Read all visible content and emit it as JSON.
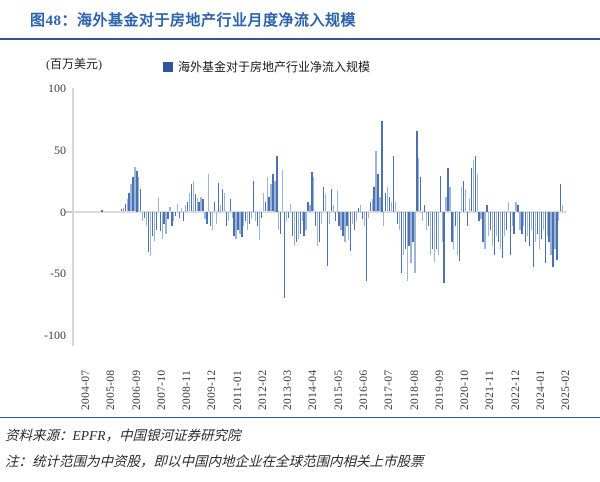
{
  "header": {
    "title": "图48：海外基金对于房地产行业月度净流入规模"
  },
  "chart": {
    "unit_label": "(百万美元)",
    "legend_label": "海外基金对于房地产行业净流入规模"
  },
  "footer": {
    "source": "资料来源：EPFR，中国银河证券研究院",
    "note": "注：统计范围为中资股，即以中国内地企业在全球范围内相关上市股票"
  },
  "colors": {
    "title_blue": "#2b63ad",
    "rule_blue": "#2f5597",
    "bar_dark": "#4a72b2",
    "bar_light": "#9db4d9",
    "axis_gray": "#d6d6d6"
  },
  "chart_data": {
    "type": "bar",
    "title": "海外基金对于房地产行业月度净流入规模",
    "ylabel": "(百万美元)",
    "ylim": [
      -100,
      100
    ],
    "grid": "zero-line only",
    "legend_position": "top",
    "y_tick_labels": [
      "100",
      "50",
      "0",
      "-50",
      "-100"
    ],
    "y_tick_values": [
      100,
      50,
      0,
      -50,
      -100
    ],
    "x_tick_labels": [
      "2004-07",
      "2005-08",
      "2006-09",
      "2007-10",
      "2008-11",
      "2009-12",
      "2011-01",
      "2012-02",
      "2013-03",
      "2014-04",
      "2015-05",
      "2016-06",
      "2017-07",
      "2018-08",
      "2019-09",
      "2020-10",
      "2021-11",
      "2022-12",
      "2024-01",
      "2025-02"
    ],
    "x_tick_interval_months": 13,
    "x_monthly_from": "2004-07",
    "x_monthly_to": "2025-06",
    "series": [
      {
        "name": "海外基金对于房地产行业净流入规模",
        "unit": "百万美元",
        "values": [
          0,
          0,
          0,
          0,
          0,
          0,
          0,
          0,
          0,
          0,
          0,
          0,
          0,
          0,
          1,
          0,
          0,
          0,
          0,
          0,
          0,
          0,
          0,
          0,
          2,
          3,
          6,
          10,
          15,
          22,
          28,
          36,
          33,
          28,
          18,
          -8,
          -5,
          -12,
          -33,
          -36,
          -20,
          -24,
          -15,
          12,
          -16,
          -22,
          -10,
          -18,
          -6,
          4,
          -12,
          -8,
          -4,
          6,
          -5,
          3,
          -8,
          5,
          8,
          15,
          22,
          25,
          14,
          11,
          8,
          12,
          10,
          -6,
          -10,
          30,
          -12,
          -15,
          8,
          -10,
          23,
          5,
          18,
          15,
          -12,
          -8,
          10,
          -5,
          -20,
          -22,
          -15,
          -18,
          -21,
          -12,
          -8,
          -15,
          -10,
          -6,
          25,
          -8,
          -12,
          -23,
          -5,
          15,
          8,
          28,
          12,
          22,
          30,
          25,
          45,
          -15,
          -18,
          34,
          -70,
          -8,
          -5,
          6,
          -20,
          -28,
          -25,
          -22,
          -18,
          -8,
          -20,
          -15,
          8,
          5,
          32,
          28,
          -12,
          -28,
          -25,
          -10,
          20,
          14,
          -44,
          -10,
          18,
          5,
          -8,
          17,
          -12,
          -15,
          -20,
          -25,
          -12,
          -23,
          -32,
          -10,
          -15,
          -8,
          3,
          5,
          -6,
          -12,
          -56,
          -5,
          8,
          10,
          20,
          49,
          30,
          12,
          73,
          -12,
          15,
          20,
          12,
          8,
          45,
          8,
          -10,
          -15,
          -50,
          -35,
          -30,
          -56,
          -28,
          -42,
          -25,
          -50,
          65,
          43,
          28,
          -8,
          5,
          -15,
          -12,
          -35,
          -30,
          -41,
          -30,
          -35,
          29,
          -25,
          -58,
          12,
          35,
          20,
          -25,
          -30,
          -12,
          -35,
          -40,
          20,
          25,
          18,
          -12,
          10,
          35,
          42,
          45,
          30,
          -8,
          -6,
          -25,
          -30,
          5,
          -20,
          -15,
          -28,
          -35,
          -20,
          -25,
          -30,
          -38,
          -20,
          -15,
          8,
          -35,
          -12,
          -18,
          8,
          5,
          -15,
          -18,
          -12,
          -25,
          -20,
          -28,
          -15,
          -45,
          -25,
          -18,
          -30,
          -22,
          -15,
          -42,
          -20,
          -25,
          -35,
          -45,
          -30,
          -39,
          -8,
          22,
          5
        ]
      }
    ]
  }
}
